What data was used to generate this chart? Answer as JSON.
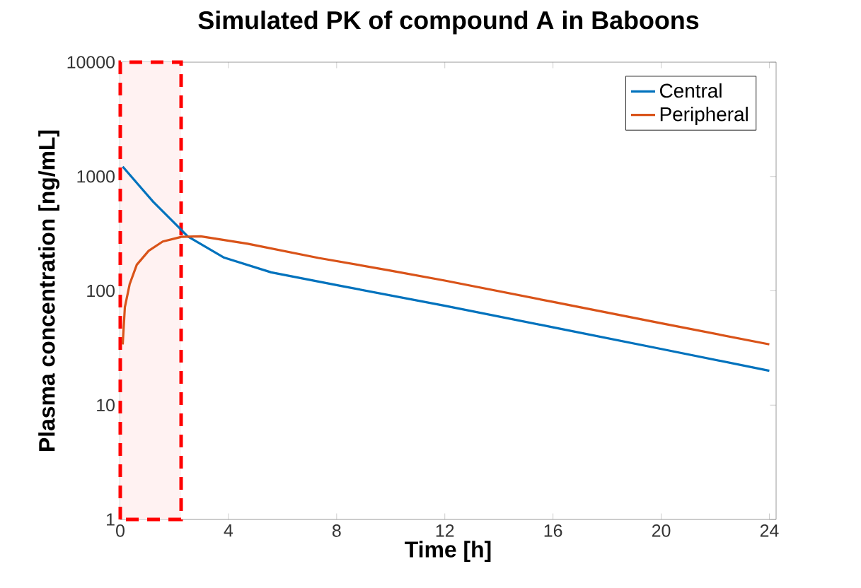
{
  "chart_data": {
    "type": "line",
    "title": "Simulated PK of compound A in Baboons",
    "xlabel": "Time [h]",
    "ylabel": "Plasma concentration [ng/mL]",
    "log": "y",
    "xlim": [
      0,
      24.25
    ],
    "xticks": [
      0,
      4,
      8,
      12,
      16,
      20,
      24
    ],
    "ylim": [
      1,
      10000
    ],
    "yticks": [
      1,
      10,
      100,
      1000,
      10000
    ],
    "legend": "top right",
    "bands": [
      {
        "axis": "x",
        "from": 0,
        "to": 2.25,
        "color": "#ff0000"
      }
    ],
    "series": [
      {
        "name": "Central",
        "color": "#0072bd",
        "x": [
          0.09,
          0.61,
          1.22,
          1.92,
          2.49,
          3.84,
          5.58,
          8.2,
          12,
          16,
          20,
          24
        ],
        "values": [
          1220,
          880,
          600,
          410,
          300,
          195,
          145,
          110,
          74,
          48,
          31,
          20
        ]
      },
      {
        "name": "Peripheral",
        "color": "#d95319",
        "x": [
          0.09,
          0.17,
          0.35,
          0.61,
          1.05,
          1.57,
          2.27,
          2.97,
          4.71,
          7.33,
          9.95,
          12,
          16,
          20,
          24
        ],
        "values": [
          34,
          72,
          115,
          169,
          224,
          270,
          297,
          300,
          258,
          194,
          151,
          123,
          80,
          52,
          34
        ]
      }
    ]
  }
}
